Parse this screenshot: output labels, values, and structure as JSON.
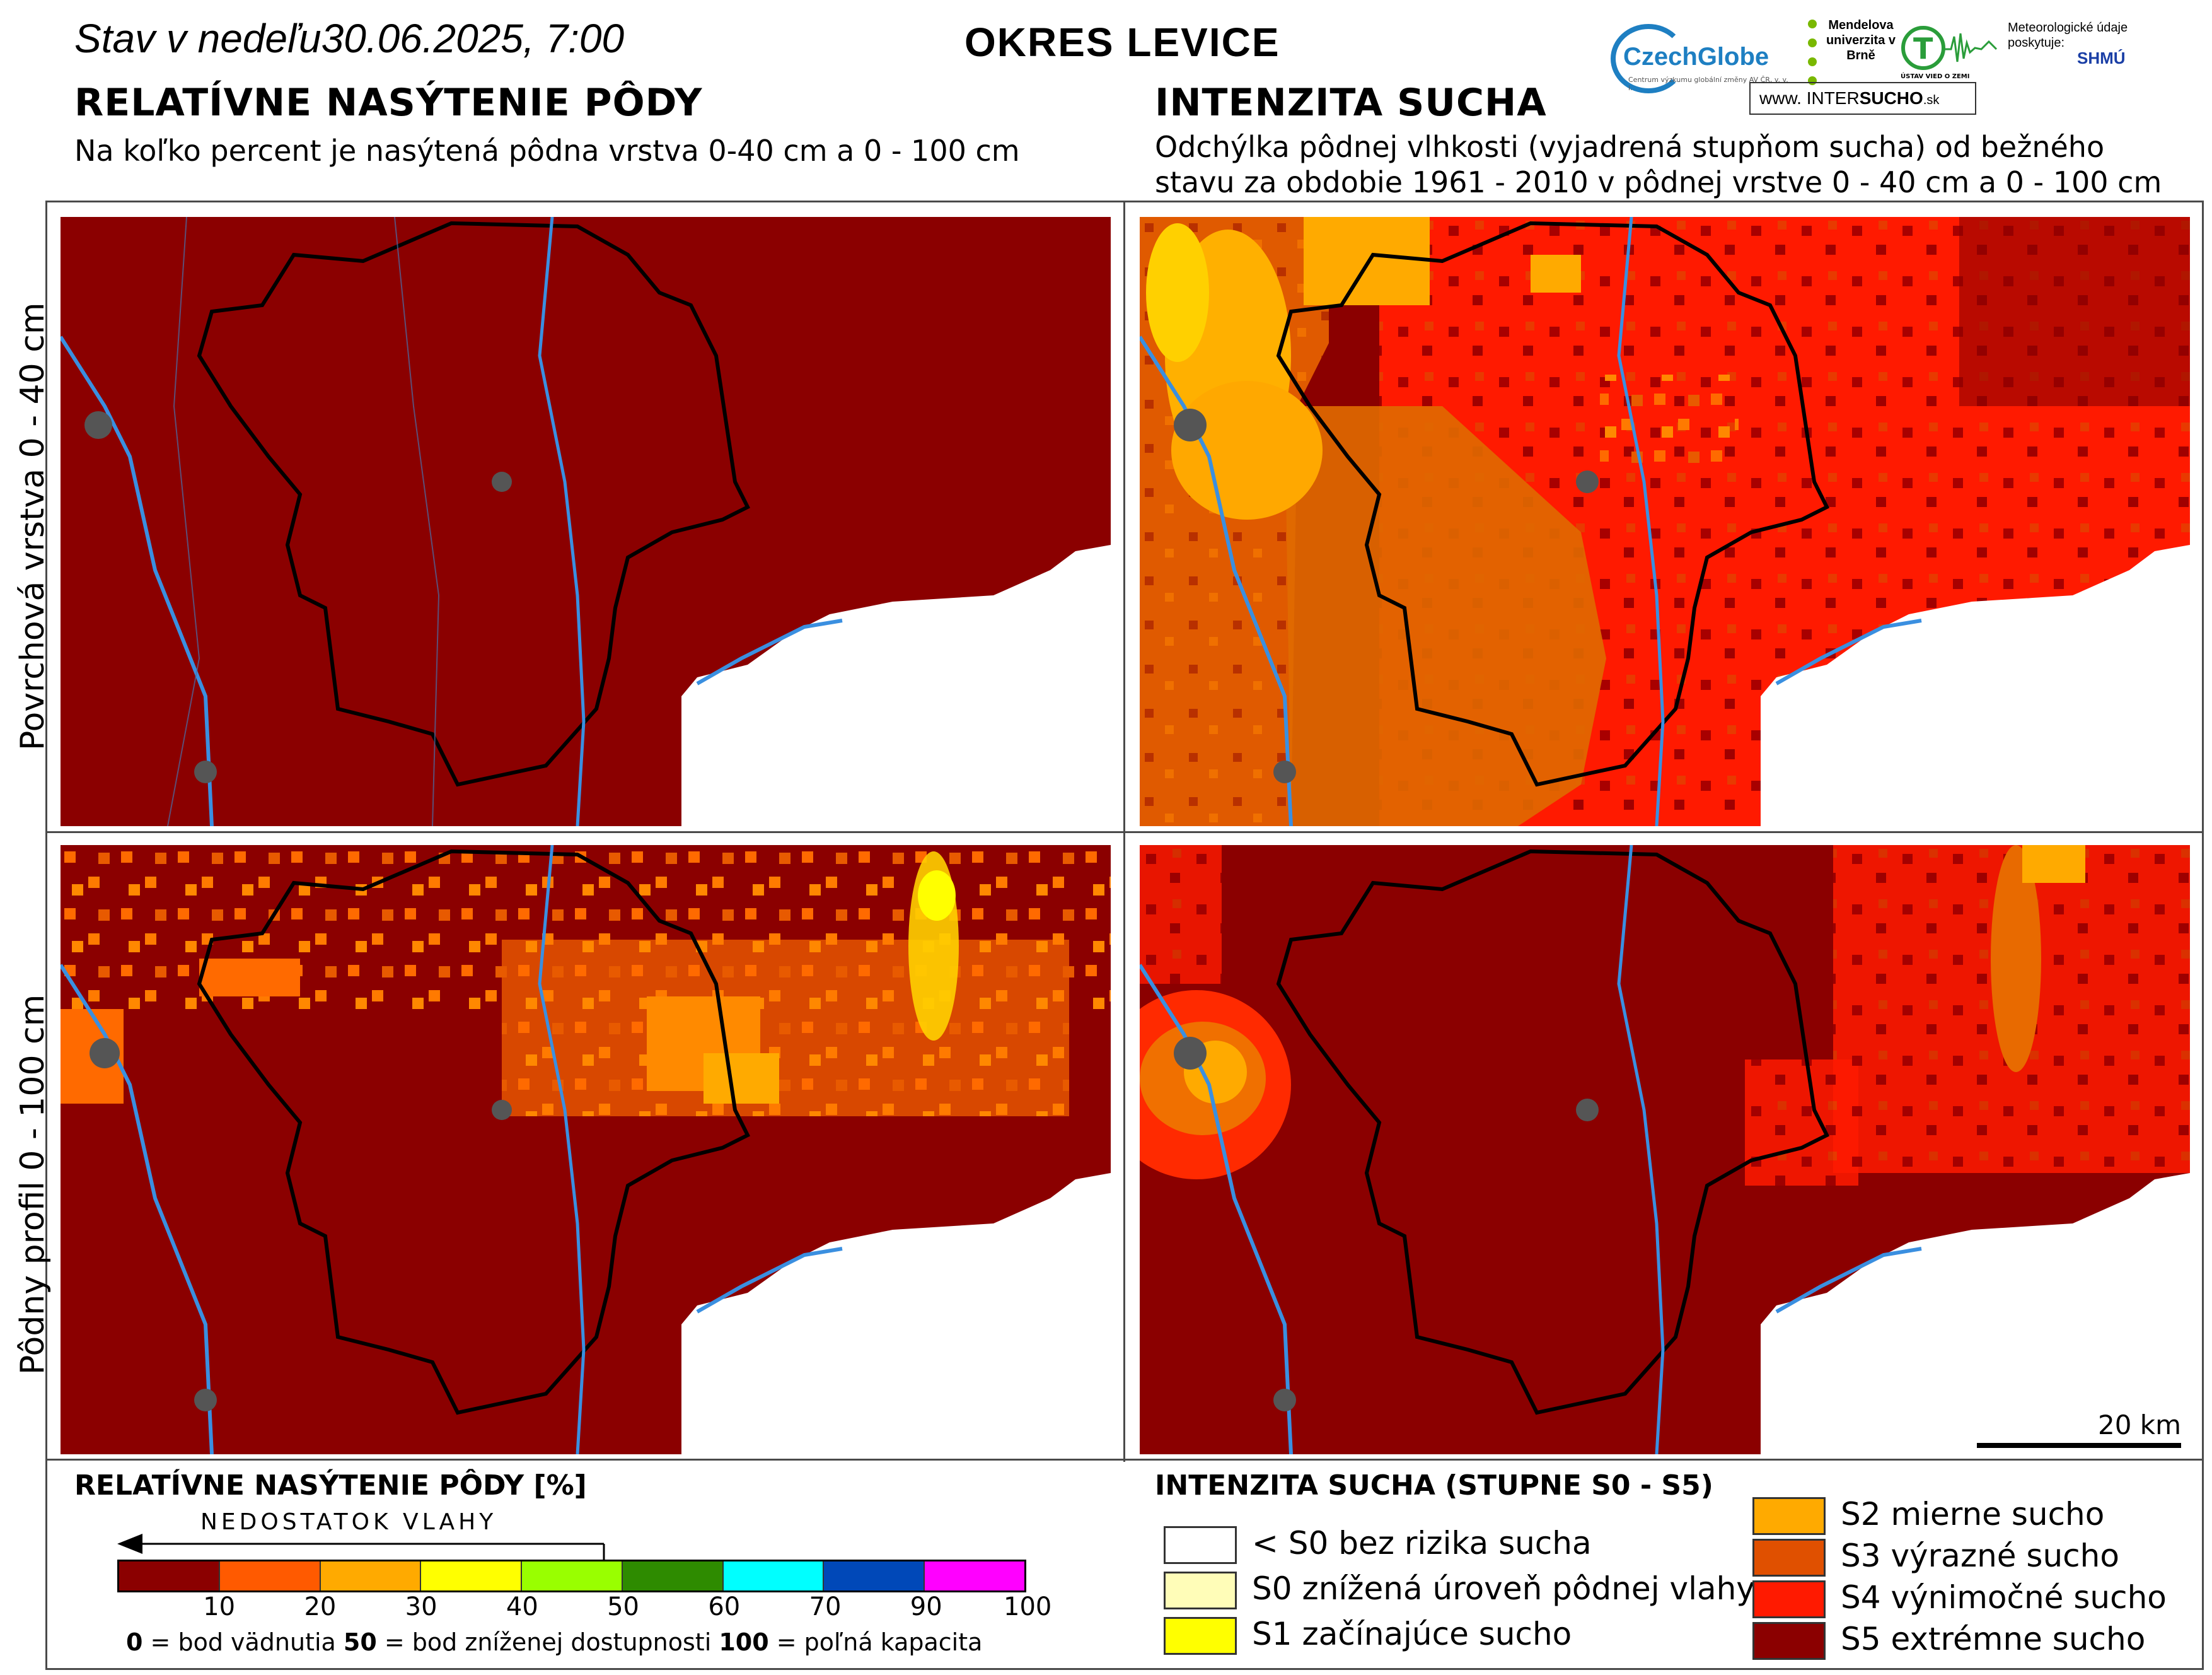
{
  "header": {
    "date_prefix": "Stav v nedeľu",
    "date": "30.06.2025, 7:00",
    "district": "OKRES  LEVICE"
  },
  "left_panel": {
    "title": "RELATÍVNE NASÝTENIE PÔDY",
    "subtitle": "Na koľko percent je nasýtená pôdna vrstva 0-40 cm a 0 - 100 cm"
  },
  "right_panel": {
    "title": "INTENZITA SUCHA",
    "subtitle": "Odchýlka pôdnej vlhkosti (vyjadrená stupňom sucha) od bežného stavu za obdobie 1961 - 2010 v pôdnej vrstve 0 - 40 cm a 0 - 100 cm"
  },
  "row_labels": {
    "top": "Povrchová vrstva 0 - 40 cm",
    "bottom": "Pôdny profil 0 - 100 cm"
  },
  "logos": {
    "czechglobe": "CzechGlobe",
    "czechglobe_sub": "Centrum výzkumu globální změny AV ČR, v. v. i.",
    "mendelu": "Mendelova univerzita v Brně",
    "ustav": "ÚSTAV VIED O ZEMI",
    "meteo": "Meteorologické údaje poskytuje:",
    "shmu": "SHMÚ",
    "intersucho_www": "www.",
    "intersucho_a": "INTER",
    "intersucho_b": "SUCHO",
    "intersucho_c": ".sk"
  },
  "scale_bar": "20 km",
  "saturation_legend": {
    "title": "RELATÍVNE NASÝTENIE PÔDY [%]",
    "arrow_label": "NEDOSTATOK VLAHY",
    "colors": [
      "#8b0000",
      "#ff5a00",
      "#ffaa00",
      "#ffff00",
      "#99ff00",
      "#2e8b00",
      "#00ffff",
      "#0048b8",
      "#ff00ff"
    ],
    "ticks": [
      "10",
      "20",
      "30",
      "40",
      "50",
      "60",
      "70",
      "90",
      "100"
    ],
    "note_a_num": "0",
    "note_a": " = bod vädnutia  ",
    "note_b_num": "50",
    "note_b": " = bod zníženej dostupnosti  ",
    "note_c_num": "100",
    "note_c": " = poľná kapacita"
  },
  "drought_legend": {
    "title": "INTENZITA SUCHA (STUPNE S0 - S5)",
    "items": [
      {
        "label": "< S0 bez rizika sucha",
        "color": "#ffffff"
      },
      {
        "label": "S0 znížená úroveň pôdnej vlahy",
        "color": "#fffdb8"
      },
      {
        "label": "S1 začínajúce sucho",
        "color": "#ffff00"
      },
      {
        "label": "S2 mierne sucho",
        "color": "#ffaa00"
      },
      {
        "label": "S3 výrazné sucho",
        "color": "#e05000"
      },
      {
        "label": "S4 výnimočné sucho",
        "color": "#ff1a00"
      },
      {
        "label": "S5 extrémne sucho",
        "color": "#8b0000"
      }
    ]
  }
}
